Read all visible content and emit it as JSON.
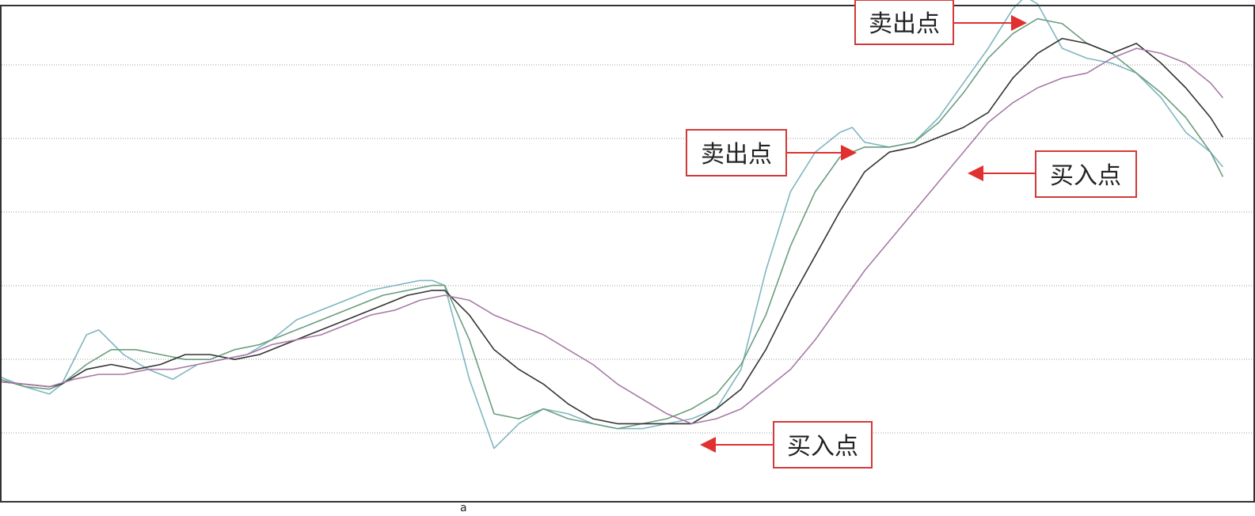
{
  "chart_data": {
    "type": "line",
    "title": "",
    "xlabel": "",
    "ylabel": "",
    "x_tick_labels": [
      "a"
    ],
    "xlim": [
      0,
      100
    ],
    "ylim": [
      0,
      100
    ],
    "grid": "horizontal dotted",
    "series": [
      {
        "color": "#7fb6c0",
        "points": [
          [
            0,
            20.5
          ],
          [
            2,
            18.5
          ],
          [
            4,
            17
          ],
          [
            5,
            19
          ],
          [
            7,
            29
          ],
          [
            8,
            30
          ],
          [
            10,
            25
          ],
          [
            12,
            22
          ],
          [
            14,
            20
          ],
          [
            16,
            23
          ],
          [
            18,
            24
          ],
          [
            20,
            25
          ],
          [
            22,
            28
          ],
          [
            24,
            32
          ],
          [
            26,
            34
          ],
          [
            28,
            36
          ],
          [
            30,
            38
          ],
          [
            32,
            39
          ],
          [
            34,
            40
          ],
          [
            35,
            40
          ],
          [
            36,
            39
          ],
          [
            38,
            20
          ],
          [
            40,
            6
          ],
          [
            42,
            11
          ],
          [
            44,
            14
          ],
          [
            46,
            13
          ],
          [
            48,
            11
          ],
          [
            50,
            10
          ],
          [
            52,
            10
          ],
          [
            54,
            11
          ],
          [
            56,
            12
          ],
          [
            58,
            14
          ],
          [
            60,
            22
          ],
          [
            62,
            42
          ],
          [
            64,
            58
          ],
          [
            66,
            66
          ],
          [
            68,
            70
          ],
          [
            69,
            71
          ],
          [
            70,
            68
          ],
          [
            72,
            67
          ],
          [
            74,
            68
          ],
          [
            76,
            73
          ],
          [
            78,
            80
          ],
          [
            80,
            87
          ],
          [
            82,
            95
          ],
          [
            83,
            97.5
          ],
          [
            84,
            96
          ],
          [
            86,
            87
          ],
          [
            88,
            85
          ],
          [
            90,
            84
          ],
          [
            92,
            82
          ],
          [
            94,
            77
          ],
          [
            96,
            70
          ],
          [
            98,
            66
          ],
          [
            99,
            63
          ]
        ]
      },
      {
        "color": "#6a9e7e",
        "points": [
          [
            0,
            20
          ],
          [
            2,
            18.5
          ],
          [
            4,
            18
          ],
          [
            5,
            19
          ],
          [
            7,
            23
          ],
          [
            9,
            26
          ],
          [
            11,
            26
          ],
          [
            13,
            25
          ],
          [
            15,
            24
          ],
          [
            17,
            24
          ],
          [
            19,
            26
          ],
          [
            21,
            27
          ],
          [
            23,
            29
          ],
          [
            25,
            31
          ],
          [
            27,
            33
          ],
          [
            29,
            35
          ],
          [
            31,
            37
          ],
          [
            33,
            38
          ],
          [
            35,
            39
          ],
          [
            36,
            39
          ],
          [
            38,
            28
          ],
          [
            40,
            13
          ],
          [
            42,
            12
          ],
          [
            44,
            14
          ],
          [
            46,
            12
          ],
          [
            48,
            11
          ],
          [
            50,
            10
          ],
          [
            52,
            11
          ],
          [
            54,
            12
          ],
          [
            56,
            14
          ],
          [
            58,
            17
          ],
          [
            60,
            23
          ],
          [
            62,
            33
          ],
          [
            64,
            47
          ],
          [
            66,
            58
          ],
          [
            68,
            65
          ],
          [
            70,
            67
          ],
          [
            72,
            67
          ],
          [
            74,
            68
          ],
          [
            76,
            72
          ],
          [
            78,
            78
          ],
          [
            80,
            85
          ],
          [
            82,
            90
          ],
          [
            84,
            93
          ],
          [
            86,
            92
          ],
          [
            88,
            88
          ],
          [
            90,
            86
          ],
          [
            92,
            82
          ],
          [
            94,
            78
          ],
          [
            96,
            73
          ],
          [
            98,
            66
          ],
          [
            99,
            61
          ]
        ]
      },
      {
        "color": "#333333",
        "points": [
          [
            0,
            19.5
          ],
          [
            2,
            19
          ],
          [
            4,
            18.5
          ],
          [
            5,
            19
          ],
          [
            7,
            22
          ],
          [
            9,
            23
          ],
          [
            11,
            22
          ],
          [
            13,
            23
          ],
          [
            15,
            25
          ],
          [
            17,
            25
          ],
          [
            19,
            24
          ],
          [
            21,
            25
          ],
          [
            23,
            27
          ],
          [
            25,
            29
          ],
          [
            27,
            31
          ],
          [
            29,
            33
          ],
          [
            31,
            35
          ],
          [
            33,
            37
          ],
          [
            35,
            38
          ],
          [
            36,
            38
          ],
          [
            38,
            33
          ],
          [
            40,
            26
          ],
          [
            42,
            22
          ],
          [
            44,
            19
          ],
          [
            46,
            15
          ],
          [
            48,
            12
          ],
          [
            50,
            11
          ],
          [
            52,
            11
          ],
          [
            54,
            11
          ],
          [
            56,
            11
          ],
          [
            58,
            14
          ],
          [
            60,
            18
          ],
          [
            62,
            26
          ],
          [
            64,
            36
          ],
          [
            66,
            45
          ],
          [
            68,
            54
          ],
          [
            70,
            62
          ],
          [
            72,
            66
          ],
          [
            74,
            67
          ],
          [
            76,
            69
          ],
          [
            78,
            71
          ],
          [
            80,
            74
          ],
          [
            82,
            81
          ],
          [
            84,
            86
          ],
          [
            86,
            89
          ],
          [
            88,
            88
          ],
          [
            90,
            86
          ],
          [
            92,
            88
          ],
          [
            94,
            84
          ],
          [
            96,
            79
          ],
          [
            98,
            73
          ],
          [
            99,
            69
          ]
        ]
      },
      {
        "color": "#a77aa6",
        "points": [
          [
            0,
            19.5
          ],
          [
            2,
            19
          ],
          [
            4,
            18.5
          ],
          [
            6,
            20
          ],
          [
            8,
            21
          ],
          [
            10,
            21
          ],
          [
            12,
            22
          ],
          [
            14,
            22
          ],
          [
            16,
            23
          ],
          [
            18,
            24
          ],
          [
            20,
            25
          ],
          [
            22,
            27
          ],
          [
            24,
            28
          ],
          [
            26,
            29
          ],
          [
            28,
            31
          ],
          [
            30,
            33
          ],
          [
            32,
            34
          ],
          [
            34,
            36
          ],
          [
            36,
            37
          ],
          [
            38,
            36
          ],
          [
            40,
            33
          ],
          [
            42,
            31
          ],
          [
            44,
            29
          ],
          [
            46,
            26
          ],
          [
            48,
            23
          ],
          [
            50,
            19
          ],
          [
            52,
            16
          ],
          [
            54,
            13
          ],
          [
            56,
            11
          ],
          [
            58,
            12
          ],
          [
            60,
            14
          ],
          [
            62,
            18
          ],
          [
            64,
            22
          ],
          [
            66,
            28
          ],
          [
            68,
            35
          ],
          [
            70,
            42
          ],
          [
            72,
            48
          ],
          [
            74,
            54
          ],
          [
            76,
            60
          ],
          [
            78,
            66
          ],
          [
            80,
            72
          ],
          [
            82,
            76
          ],
          [
            84,
            79
          ],
          [
            86,
            81
          ],
          [
            88,
            82
          ],
          [
            90,
            85
          ],
          [
            92,
            87
          ],
          [
            94,
            86
          ],
          [
            96,
            84
          ],
          [
            98,
            80
          ],
          [
            99,
            77
          ]
        ]
      }
    ],
    "annotations": [
      {
        "text": "卖出点",
        "target": [
          83,
          97.5
        ]
      },
      {
        "text": "卖出点",
        "target": [
          69,
          71
        ]
      },
      {
        "text": "买入点",
        "target": [
          78,
          67
        ]
      },
      {
        "text": "买入点",
        "target": [
          56,
          11
        ]
      }
    ]
  }
}
